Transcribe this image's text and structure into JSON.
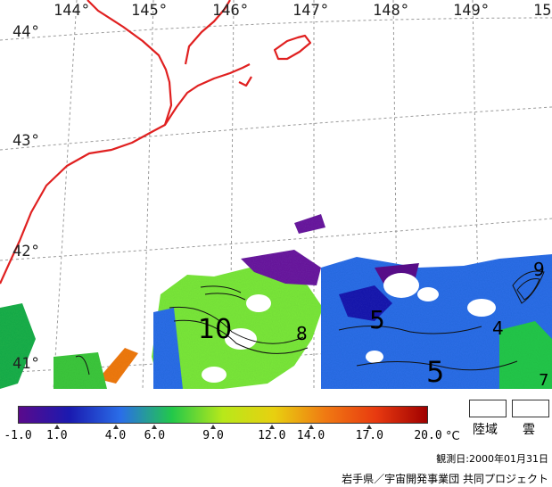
{
  "map": {
    "longitude_labels": [
      "144°",
      "145°",
      "146°",
      "147°",
      "148°",
      "149°",
      "15"
    ],
    "latitude_labels": [
      "44°",
      "43°",
      "42°",
      "41°"
    ],
    "contour_labels": [
      "10",
      "8",
      "5",
      "5",
      "4",
      "9",
      "7"
    ],
    "colors": {
      "coastline": "#e02020",
      "graticule": "#9a9a9a",
      "contour": "#111111"
    }
  },
  "colorbar": {
    "ticks": [
      "-1.0",
      "1.0",
      "4.0",
      "6.0",
      "9.0",
      "12.0",
      "14.0",
      "17.0",
      "20.0"
    ],
    "unit": "°C",
    "colors": [
      "#5a0a8c",
      "#1a1ab0",
      "#2a6ee8",
      "#22c84a",
      "#b8e81a",
      "#e8d010",
      "#f07a12",
      "#e83a10",
      "#a00000"
    ]
  },
  "legend": {
    "land_label": "陸域",
    "cloud_label": "雲"
  },
  "observation_date": "観測日:2000年01月31日",
  "credit": "岩手県／宇宙開発事業団 共同プロジェクト"
}
